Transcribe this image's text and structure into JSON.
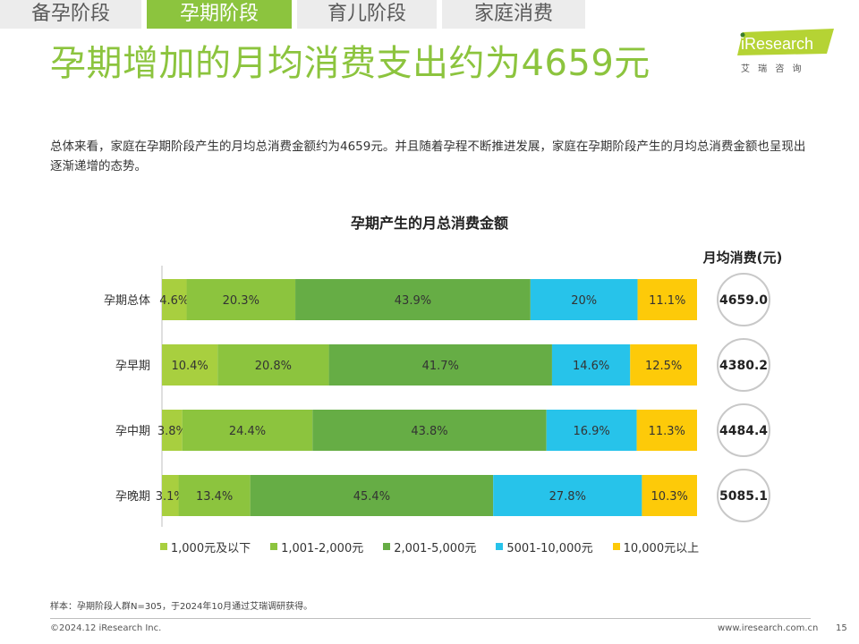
{
  "tabs": [
    {
      "label": "备孕阶段",
      "active": false
    },
    {
      "label": "孕期阶段",
      "active": true
    },
    {
      "label": "育儿阶段",
      "active": false
    },
    {
      "label": "家庭消费",
      "active": false
    }
  ],
  "page_title": "孕期增加的月均消费支出约为4659元",
  "logo": {
    "brand": "iResearch",
    "sub": "艾 瑞 咨 询"
  },
  "summary": "总体来看，家庭在孕期阶段产生的月均总消费金额约为4659元。并且随着孕程不断推进发展，家庭在孕期阶段产生的月均总消费金额也呈现出逐渐递增的态势。",
  "chart_data": {
    "type": "bar",
    "orientation": "horizontal",
    "stacked": true,
    "percent_stacked": true,
    "title": "孕期产生的月总消费金额",
    "categories": [
      "孕期总体",
      "孕早期",
      "孕中期",
      "孕晚期"
    ],
    "series": [
      {
        "name": "1,000元及以下",
        "values": [
          4.6,
          10.4,
          3.8,
          3.1
        ],
        "labels": [
          "4.6%",
          "10.4%",
          "3.8%",
          "3.1%"
        ],
        "color": "#a8cf3f"
      },
      {
        "name": "1,001-2,000元",
        "values": [
          20.3,
          20.8,
          24.4,
          13.4
        ],
        "labels": [
          "20.3%",
          "20.8%",
          "24.4%",
          "13.4%"
        ],
        "color": "#8cc43e"
      },
      {
        "name": "2,001-5,000元",
        "values": [
          43.9,
          41.7,
          43.8,
          45.4
        ],
        "labels": [
          "43.9%",
          "41.7%",
          "43.8%",
          "45.4%"
        ],
        "color": "#66ad45"
      },
      {
        "name": "5001-10,000元",
        "values": [
          20,
          14.6,
          16.9,
          27.8
        ],
        "labels": [
          "20%",
          "14.6%",
          "16.9%",
          "27.8%"
        ],
        "color": "#27c3ea"
      },
      {
        "name": "10,000元以上",
        "values": [
          11.1,
          12.5,
          11.3,
          10.3
        ],
        "labels": [
          "11.1%",
          "12.5%",
          "11.3%",
          "10.3%"
        ],
        "color": "#fdca09"
      }
    ],
    "side_values_label": "月均消费(元)",
    "side_values": [
      "4659.0",
      "4380.2",
      "4484.4",
      "5085.1"
    ],
    "legend_position": "bottom",
    "grid": false
  },
  "footnote": "样本：孕期阶段人群N=305，于2024年10月通过艾瑞调研获得。",
  "copyright": "©2024.12 iResearch Inc.",
  "website": "www.iresearch.com.cn",
  "page_number": "15"
}
